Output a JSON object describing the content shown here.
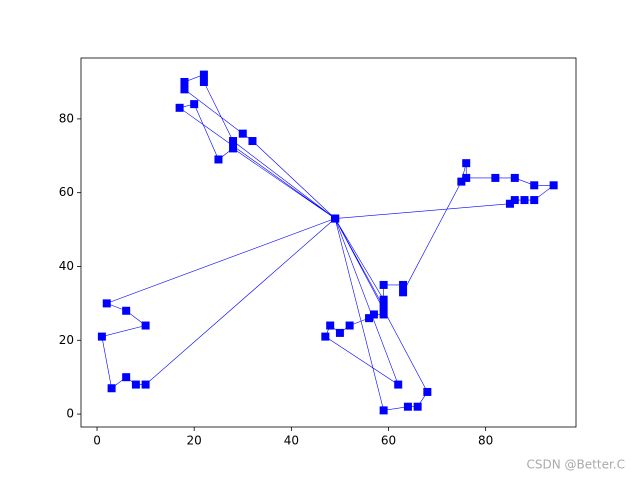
{
  "chart_data": {
    "type": "line",
    "xlim": [
      -3.3,
      98.6
    ],
    "ylim": [
      -3.5,
      96.5
    ],
    "xticks": [
      0,
      20,
      40,
      60,
      80
    ],
    "yticks": [
      0,
      20,
      40,
      60,
      80
    ],
    "series": [
      {
        "color": "#0000ff",
        "x": [
          49,
          32,
          30,
          18,
          18,
          22,
          22,
          28,
          49,
          28,
          25,
          20,
          17,
          49,
          85,
          86,
          88,
          90,
          94,
          90,
          86,
          82,
          76,
          76,
          75,
          63,
          63,
          59,
          59,
          49,
          2,
          6,
          10,
          1,
          3,
          6,
          8,
          10,
          49,
          59,
          59,
          57,
          56,
          52,
          50,
          48,
          47,
          62,
          49,
          59,
          64,
          66,
          68,
          49
        ],
        "y": [
          53,
          74,
          76,
          88,
          90,
          92,
          90,
          74,
          53,
          72,
          69,
          84,
          83,
          53,
          57,
          58,
          58,
          58,
          62,
          62,
          64,
          64,
          64,
          68,
          63,
          33,
          35,
          35,
          31,
          53,
          30,
          28,
          24,
          21,
          7,
          10,
          8,
          8,
          53,
          29,
          27,
          27,
          26,
          24,
          22,
          24,
          21,
          8,
          53,
          1,
          2,
          2,
          6,
          53
        ]
      }
    ],
    "annotation": "CSDN @Better.C"
  }
}
